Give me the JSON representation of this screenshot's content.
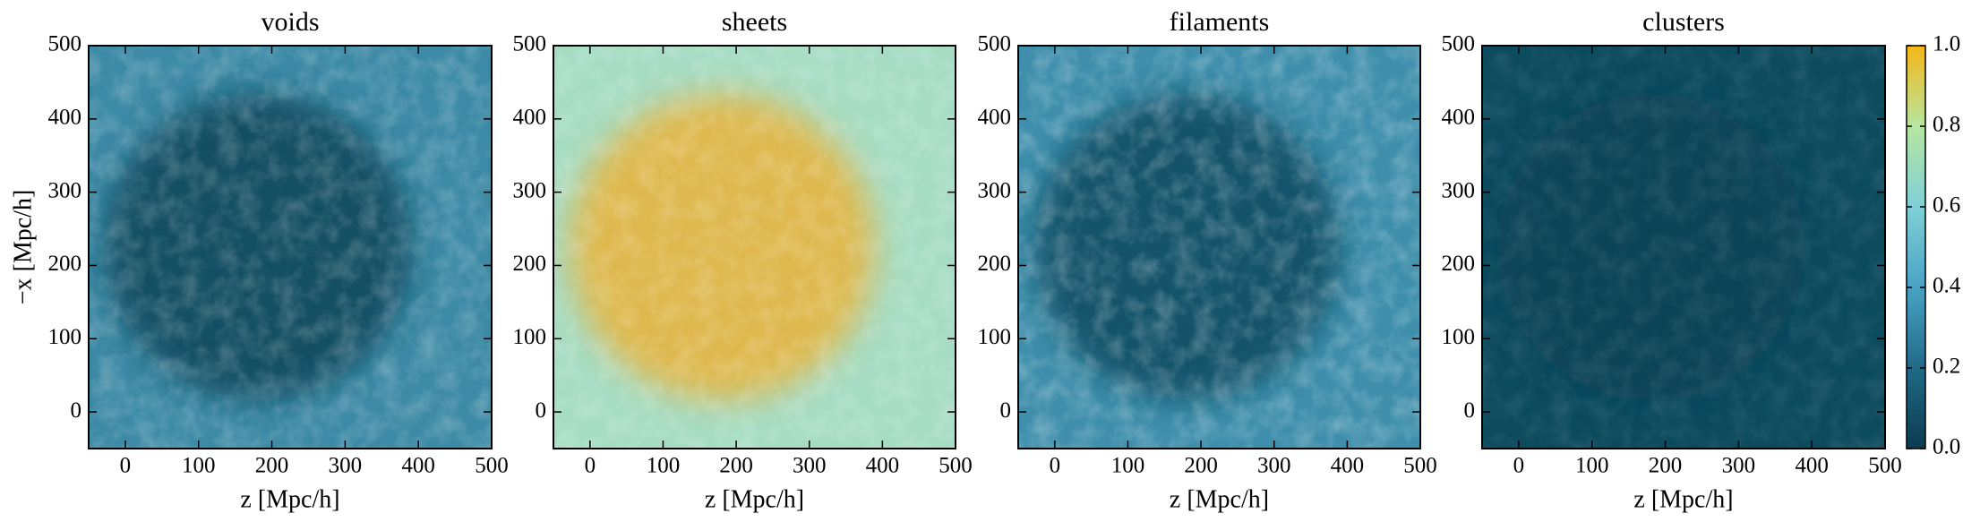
{
  "chart_data": [
    {
      "type": "heatmap",
      "title": "voids",
      "xlabel": "z [Mpc/h]",
      "ylabel": "−x [Mpc/h]",
      "xlim": [
        -50,
        500
      ],
      "xticks": [
        0,
        100,
        200,
        300,
        400,
        500
      ],
      "ylim": [
        -50,
        500
      ],
      "yticks": [
        0,
        100,
        200,
        300,
        400,
        500
      ]
    },
    {
      "type": "heatmap",
      "title": "sheets",
      "xlabel": "z [Mpc/h]",
      "xlim": [
        -50,
        500
      ],
      "xticks": [
        0,
        100,
        200,
        300,
        400,
        500
      ],
      "ylim": [
        -50,
        500
      ],
      "yticks": [
        0,
        100,
        200,
        300,
        400,
        500
      ]
    },
    {
      "type": "heatmap",
      "title": "filaments",
      "xlabel": "z [Mpc/h]",
      "xlim": [
        -50,
        500
      ],
      "xticks": [
        0,
        100,
        200,
        300,
        400,
        500
      ],
      "ylim": [
        -50,
        500
      ],
      "yticks": [
        0,
        100,
        200,
        300,
        400,
        500
      ]
    },
    {
      "type": "heatmap",
      "title": "clusters",
      "xlabel": "z [Mpc/h]",
      "xlim": [
        -50,
        500
      ],
      "xticks": [
        0,
        100,
        200,
        300,
        400,
        500
      ],
      "ylim": [
        -50,
        500
      ],
      "yticks": [
        0,
        100,
        200,
        300,
        400,
        500
      ],
      "colorbar": {
        "clim": [
          0,
          1
        ],
        "colormap": [
          "#0b3b4f",
          "#1f6a87",
          "#4aa3c4",
          "#7fd0d6",
          "#b6e6a0",
          "#f5b716"
        ],
        "ticks": [
          {
            "value": 0,
            "label": "0.0"
          },
          {
            "value": 0.2,
            "label": "0.2"
          },
          {
            "value": 0.4,
            "label": "0.4"
          },
          {
            "value": 0.6,
            "label": "0.6"
          },
          {
            "value": 0.8,
            "label": "0.8"
          },
          {
            "value": 1,
            "label": "1.0"
          }
        ]
      }
    }
  ]
}
